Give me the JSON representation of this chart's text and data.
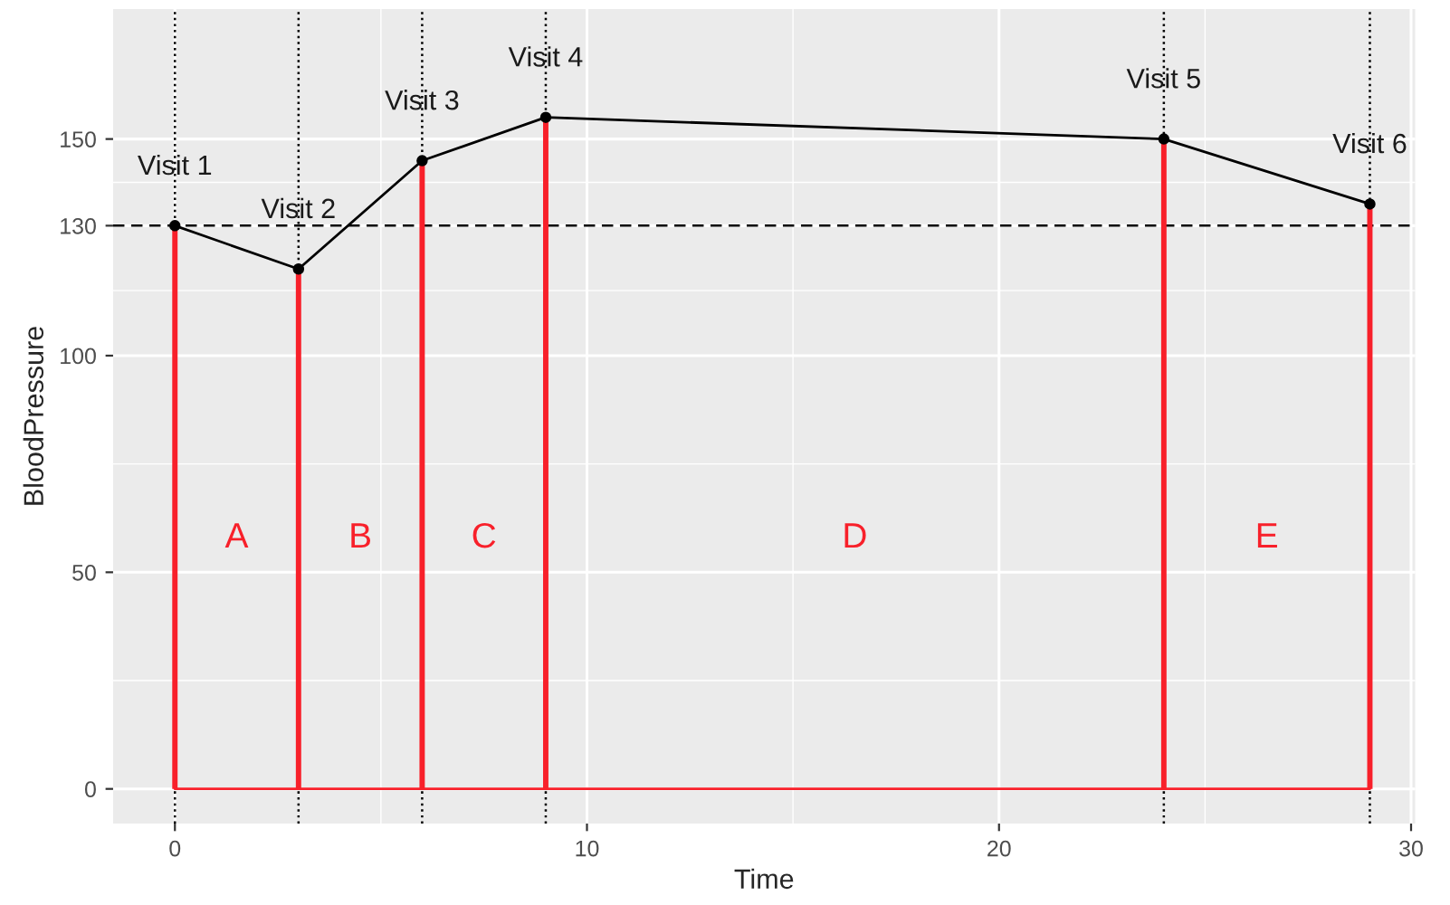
{
  "chart_data": {
    "type": "line",
    "xlabel": "Time",
    "ylabel": "BloodPressure",
    "xlim": [
      -1.5,
      30.1
    ],
    "ylim": [
      -8,
      180
    ],
    "xticks": [
      0,
      10,
      20,
      30
    ],
    "yticks": [
      0,
      50,
      100,
      130,
      150
    ],
    "grid": true,
    "x": [
      0,
      3,
      6,
      9,
      24,
      29
    ],
    "series": [
      {
        "type": "bar",
        "color": "#f8202a",
        "values": [
          130,
          120,
          145,
          155,
          150,
          135
        ]
      },
      {
        "type": "line",
        "color": "#f8202a",
        "x": [
          0,
          29
        ],
        "values": [
          0,
          0
        ],
        "marker": "none"
      },
      {
        "color": "#000000",
        "values": [
          130,
          120,
          145,
          155,
          150,
          135
        ],
        "marker": "circle"
      }
    ],
    "ref_lines": [
      {
        "axis": "y",
        "value": 130,
        "line_style": "dashed",
        "color": "#000000"
      },
      {
        "axis": "x",
        "value": 0,
        "line_style": "dotted",
        "color": "#000000"
      },
      {
        "axis": "x",
        "value": 3,
        "line_style": "dotted",
        "color": "#000000"
      },
      {
        "axis": "x",
        "value": 6,
        "line_style": "dotted",
        "color": "#000000"
      },
      {
        "axis": "x",
        "value": 9,
        "line_style": "dotted",
        "color": "#000000"
      },
      {
        "axis": "x",
        "value": 24,
        "line_style": "dotted",
        "color": "#000000"
      },
      {
        "axis": "x",
        "value": 29,
        "line_style": "dotted",
        "color": "#000000"
      }
    ],
    "annotations": [
      {
        "text": "Visit 1",
        "x": 0,
        "y": 130
      },
      {
        "text": "Visit 2",
        "x": 3,
        "y": 120
      },
      {
        "text": "Visit 3",
        "x": 6,
        "y": 145
      },
      {
        "text": "Visit 4",
        "x": 9,
        "y": 155
      },
      {
        "text": "Visit 5",
        "x": 24,
        "y": 150
      },
      {
        "text": "Visit 6",
        "x": 29,
        "y": 135
      },
      "A",
      "B",
      "C",
      "D",
      "E"
    ]
  }
}
